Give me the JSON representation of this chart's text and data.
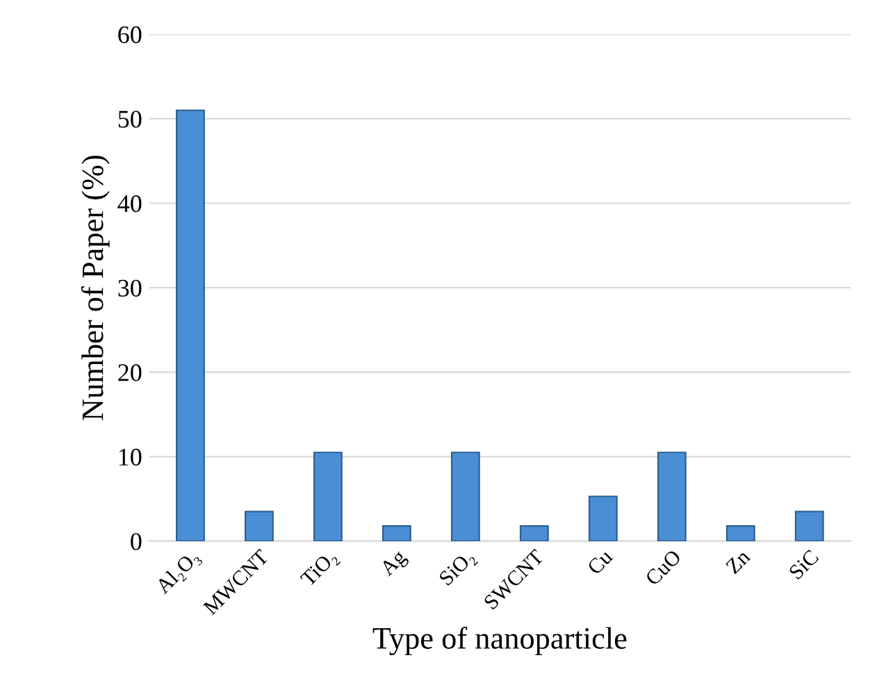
{
  "chart_data": {
    "type": "bar",
    "xlabel": "Type of nanoparticle",
    "ylabel": "Number of Paper (%)",
    "categories": [
      "Al₂O₃",
      "MWCNT",
      "TiO₂",
      "Ag",
      "SiO₂",
      "SWCNT",
      "Cu",
      "CuO",
      "Zn",
      "SiC"
    ],
    "values": [
      51,
      3.5,
      10.5,
      1.8,
      10.5,
      1.8,
      5.3,
      10.5,
      1.8,
      3.5
    ],
    "color": "#4a8fd6",
    "ylim": [
      0,
      60
    ],
    "yticks": [
      0,
      10,
      20,
      30,
      40,
      50,
      60
    ],
    "grid": "y"
  }
}
